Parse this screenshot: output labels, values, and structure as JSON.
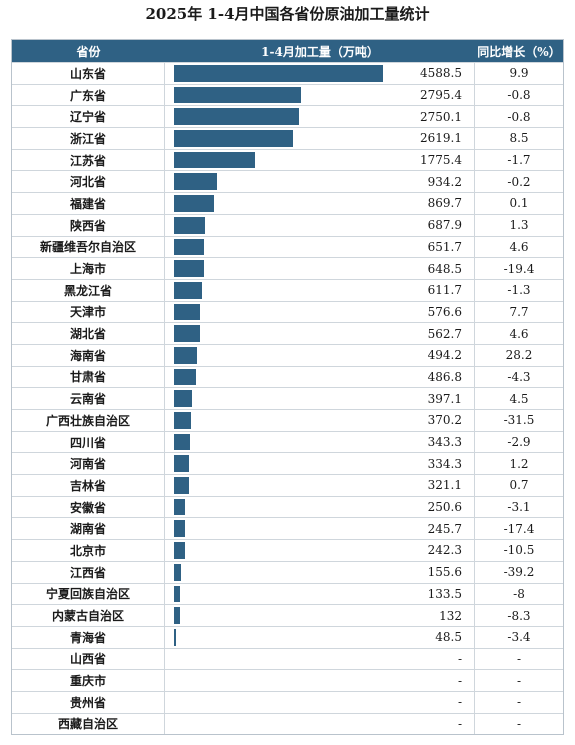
{
  "title": "2025年 1-4月中国各省份原油加工量统计",
  "header": {
    "province": "省份",
    "volume": "1-4月加工量（万吨）",
    "growth": "同比增长（%）"
  },
  "colors": {
    "bar": "#2f6184",
    "header": "#2f6184"
  },
  "chart_data": {
    "type": "bar",
    "title": "2025年 1-4月中国各省份原油加工量统计",
    "orientation": "horizontal",
    "xlim": [
      0,
      4588.5
    ],
    "categories": [
      "山东省",
      "广东省",
      "辽宁省",
      "浙江省",
      "江苏省",
      "河北省",
      "福建省",
      "陕西省",
      "新疆维吾尔自治区",
      "上海市",
      "黑龙江省",
      "天津市",
      "湖北省",
      "海南省",
      "甘肃省",
      "云南省",
      "广西壮族自治区",
      "四川省",
      "河南省",
      "吉林省",
      "安徽省",
      "湖南省",
      "北京市",
      "江西省",
      "宁夏回族自治区",
      "内蒙古自治区",
      "青海省",
      "山西省",
      "重庆市",
      "贵州省",
      "西藏自治区"
    ],
    "series": [
      {
        "name": "1-4月加工量（万吨）",
        "values": [
          4588.5,
          2795.4,
          2750.1,
          2619.1,
          1775.4,
          934.2,
          869.7,
          687.9,
          651.7,
          648.5,
          611.7,
          576.6,
          562.7,
          494.2,
          486.8,
          397.1,
          370.2,
          343.3,
          334.3,
          321.1,
          250.6,
          245.7,
          242.3,
          155.6,
          133.5,
          132,
          48.5,
          null,
          null,
          null,
          null
        ]
      }
    ],
    "volume_labels": [
      "4588.5",
      "2795.4",
      "2750.1",
      "2619.1",
      "1775.4",
      "934.2",
      "869.7",
      "687.9",
      "651.7",
      "648.5",
      "611.7",
      "576.6",
      "562.7",
      "494.2",
      "486.8",
      "397.1",
      "370.2",
      "343.3",
      "334.3",
      "321.1",
      "250.6",
      "245.7",
      "242.3",
      "155.6",
      "133.5",
      "132",
      "48.5",
      "-",
      "-",
      "-",
      "-"
    ],
    "growth": [
      "9.9",
      "-0.8",
      "-0.8",
      "8.5",
      "-1.7",
      "-0.2",
      "0.1",
      "1.3",
      "4.6",
      "-19.4",
      "-1.3",
      "7.7",
      "4.6",
      "28.2",
      "-4.3",
      "4.5",
      "-31.5",
      "-2.9",
      "1.2",
      "0.7",
      "-3.1",
      "-17.4",
      "-10.5",
      "-39.2",
      "-8",
      "-8.3",
      "-3.4",
      "-",
      "-",
      "-",
      "-"
    ]
  }
}
